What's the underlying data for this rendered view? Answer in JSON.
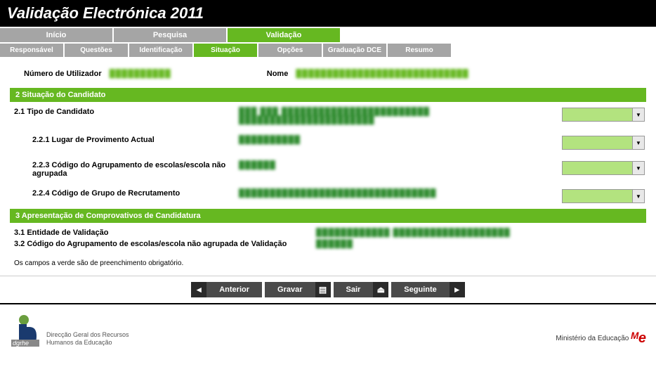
{
  "header": {
    "title": "Validação Electrónica 2011"
  },
  "mainTabs": [
    {
      "label": "Início",
      "active": false
    },
    {
      "label": "Pesquisa",
      "active": false
    },
    {
      "label": "Validação",
      "active": true
    }
  ],
  "subTabs": [
    {
      "label": "Responsável",
      "active": false
    },
    {
      "label": "Questões",
      "active": false
    },
    {
      "label": "Identificação",
      "active": false
    },
    {
      "label": "Situação",
      "active": true
    },
    {
      "label": "Opções",
      "active": false
    },
    {
      "label": "Graduação DCE",
      "active": false
    },
    {
      "label": "Resumo",
      "active": false
    }
  ],
  "user": {
    "numLabel": "Número de Utilizador",
    "numValue": "██████████",
    "nameLabel": "Nome",
    "nameValue": "████████████████████████████"
  },
  "section2": {
    "title": "2 Situação do Candidato",
    "f1": {
      "label": "2.1 Tipo de Candidato",
      "value": "███ ███ ████████████████████████ ██████████████████████"
    },
    "f2": {
      "label": "2.2.1 Lugar de Provimento Actual",
      "value": "██████████"
    },
    "f3": {
      "label": "2.2.3 Código do Agrupamento de escolas/escola não agrupada",
      "value": "██████"
    },
    "f4": {
      "label": "2.2.4 Código de Grupo de Recrutamento",
      "value": "████████████████████████████████"
    }
  },
  "section3": {
    "title": "3 Apresentação de Comprovativos de Candidatura",
    "f1": {
      "label": "3.1 Entidade de Validação",
      "value": "████████████ ███████████████████"
    },
    "f2": {
      "label": "3.2 Código do Agrupamento de escolas/escola não agrupada de Validação",
      "value": "██████"
    }
  },
  "note": "Os campos a verde são de preenchimento obrigatório.",
  "nav": {
    "prev": "Anterior",
    "save": "Gravar",
    "exit": "Sair",
    "next": "Seguinte"
  },
  "footer": {
    "leftLine1": "Direcção Geral dos Recursos",
    "leftLine2": "Humanos da Educação",
    "right": "Ministério da Educação"
  }
}
